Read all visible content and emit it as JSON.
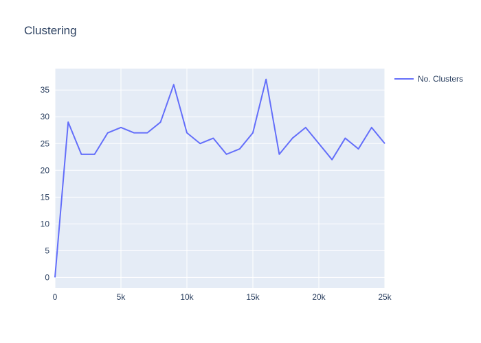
{
  "chart_data": {
    "type": "line",
    "title": "Clustering",
    "xlabel": "",
    "ylabel": "",
    "xlim": [
      0,
      25000
    ],
    "ylim": [
      -2,
      39
    ],
    "x_ticks": [
      0,
      5000,
      10000,
      15000,
      20000,
      25000
    ],
    "x_tick_labels": [
      "0",
      "5k",
      "10k",
      "15k",
      "20k",
      "25k"
    ],
    "y_ticks": [
      0,
      5,
      10,
      15,
      20,
      25,
      30,
      35
    ],
    "y_tick_labels": [
      "0",
      "5",
      "10",
      "15",
      "20",
      "25",
      "30",
      "35"
    ],
    "grid": true,
    "legend_position": "top-right",
    "plot_background": "#e5ecf6",
    "series": [
      {
        "name": "No. Clusters",
        "color": "#636efa",
        "x": [
          0,
          1000,
          2000,
          3000,
          4000,
          5000,
          6000,
          7000,
          8000,
          9000,
          10000,
          11000,
          12000,
          13000,
          14000,
          15000,
          16000,
          17000,
          18000,
          19000,
          20000,
          21000,
          22000,
          23000,
          24000,
          25000
        ],
        "y": [
          0,
          29,
          23,
          23,
          27,
          28,
          27,
          27,
          29,
          36,
          27,
          25,
          26,
          23,
          24,
          27,
          37,
          23,
          26,
          28,
          25,
          22,
          26,
          24,
          28,
          25
        ]
      }
    ]
  }
}
